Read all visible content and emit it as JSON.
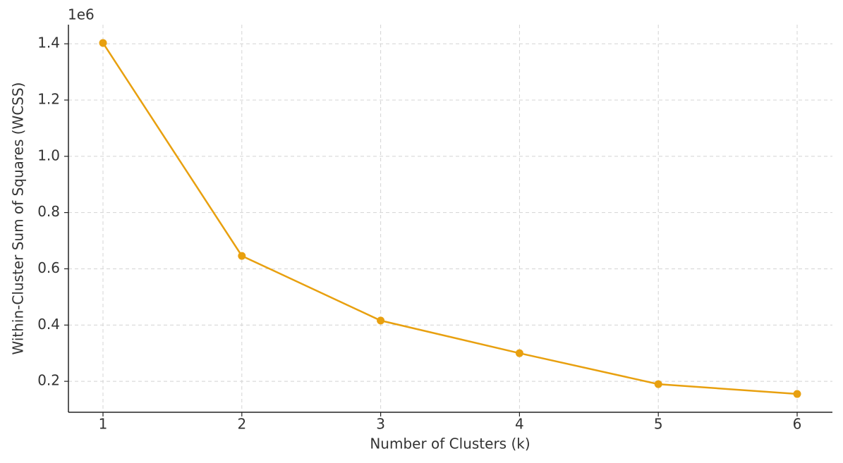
{
  "chart_data": {
    "type": "line",
    "x": [
      1,
      2,
      3,
      4,
      5,
      6
    ],
    "xlabel": "Number of Clusters (k)",
    "ylabel": "Within-Cluster Sum of Squares (WCSS)",
    "y_offset_label": "1e6",
    "series": [
      {
        "color": "#e8a00f",
        "values": [
          1.403,
          0.646,
          0.416,
          0.3,
          0.19,
          0.155
        ]
      }
    ],
    "xlim": [
      0.751,
      6.254
    ],
    "xticks": [
      1,
      2,
      3,
      4,
      5,
      6
    ],
    "ylim": [
      0.09,
      1.468
    ],
    "yticks": [
      {
        "value": 0.2,
        "label": "0.2"
      },
      {
        "value": 0.4,
        "label": "0.4"
      },
      {
        "value": 0.6,
        "label": "0.6"
      },
      {
        "value": 0.8,
        "label": "0.8"
      },
      {
        "value": 1.0,
        "label": "1.0"
      },
      {
        "value": 1.2,
        "label": "1.2"
      },
      {
        "value": 1.4,
        "label": "1.4"
      }
    ],
    "grid": true,
    "markers": true
  }
}
